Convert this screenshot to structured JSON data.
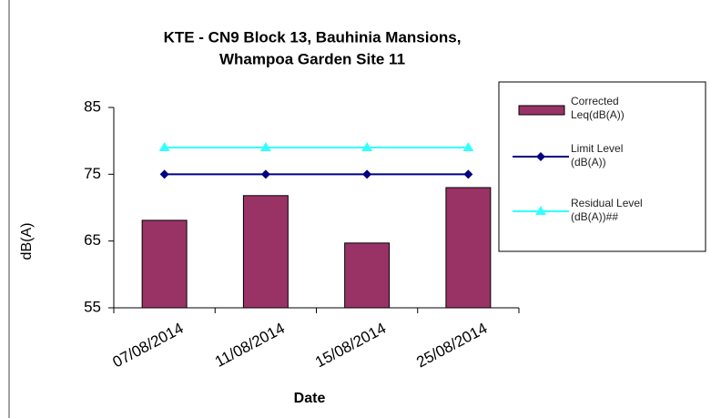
{
  "chart_data": {
    "type": "bar",
    "title": [
      "KTE - CN9 Block 13, Bauhinia Mansions,",
      "Whampoa Garden Site 11"
    ],
    "x_label": "Date",
    "y_label": "dB(A)",
    "categories": [
      "07/08/2014",
      "11/08/2014",
      "15/08/2014",
      "25/08/2014"
    ],
    "series": [
      {
        "name": "Corrected Leq(dB(A))",
        "type": "bar",
        "color": "#993366",
        "values": [
          68.1,
          71.8,
          64.7,
          73.0
        ]
      },
      {
        "name": "Limit Level (dB(A))",
        "type": "line",
        "color": "#000080",
        "values": [
          75,
          75,
          75,
          75
        ]
      },
      {
        "name": "Residual Level (dB(A))##",
        "type": "line",
        "color": "#33ffff",
        "values": [
          79,
          79,
          79,
          79
        ]
      }
    ],
    "ylim": [
      55,
      85
    ],
    "yticks": [
      55,
      65,
      75,
      85
    ],
    "grid": false,
    "legend": "right"
  }
}
